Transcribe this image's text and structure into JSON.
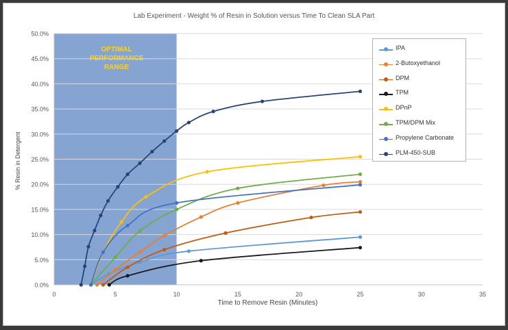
{
  "chart_data": {
    "type": "scatter",
    "title": "Lab Experiment - Weight % of Resin in Solution versus Time To Clean SLA Part",
    "xlabel": "Time to Remove Resin (Minutes)",
    "ylabel": "% Resin in Detergent",
    "xlim": [
      0,
      35
    ],
    "ylim": [
      0,
      50
    ],
    "x_ticks": [
      "0",
      "5",
      "10",
      "15",
      "20",
      "25",
      "30",
      "35"
    ],
    "y_ticks": [
      "0.0%",
      "5.0%",
      "10.0%",
      "15.0%",
      "20.0%",
      "25.0%",
      "30.0%",
      "35.0%",
      "40.0%",
      "45.0%",
      "50.0%"
    ],
    "grid": "horizontal",
    "legend_position": "top-right",
    "annotation": {
      "lines": [
        "OPTIMAL",
        "PERFORMANCE",
        "RANGE"
      ],
      "x_range": [
        0,
        10
      ]
    },
    "series": [
      {
        "name": "IPA",
        "color": "#5b9bd5",
        "x": [
          3,
          4.5,
          7,
          11,
          25
        ],
        "y": [
          0,
          2.2,
          4.5,
          6.7,
          9.5
        ]
      },
      {
        "name": "2-Butoxyethanol",
        "color": "#ed7d31",
        "x": [
          3.5,
          5,
          7,
          9,
          12,
          15,
          22,
          25
        ],
        "y": [
          0,
          3,
          6.5,
          9.8,
          13.5,
          16.3,
          19.8,
          20.5
        ]
      },
      {
        "name": "DPM",
        "color": "#c55a11",
        "x": [
          4,
          6,
          9,
          14,
          21,
          25
        ],
        "y": [
          0,
          3.5,
          7,
          10.3,
          13.4,
          14.5
        ]
      },
      {
        "name": "TPM",
        "color": "#1a1a1a",
        "x": [
          4.5,
          6,
          12,
          25
        ],
        "y": [
          0,
          1.8,
          4.8,
          7.4
        ]
      },
      {
        "name": "DPnP",
        "color": "#ffc000",
        "x": [
          3,
          4,
          5.5,
          7.5,
          12.5,
          25
        ],
        "y": [
          0,
          6.5,
          12.5,
          17.5,
          22.5,
          25.5
        ]
      },
      {
        "name": "TPM/DPM Mix",
        "color": "#70ad47",
        "x": [
          3,
          5,
          7,
          10,
          15,
          25
        ],
        "y": [
          0,
          5.5,
          10.7,
          15,
          19.2,
          22
        ]
      },
      {
        "name": "Propylene Carbonate",
        "color": "#4472c4",
        "x": [
          3,
          4,
          6,
          10,
          25
        ],
        "y": [
          0,
          6.5,
          11.8,
          16.3,
          19.9
        ]
      },
      {
        "name": "PLM-450-SUB",
        "color": "#264478",
        "x": [
          2.2,
          2.5,
          2.8,
          3.3,
          3.8,
          4.4,
          5.2,
          6,
          7,
          8,
          9,
          10,
          11,
          13,
          17,
          25
        ],
        "y": [
          0,
          3.7,
          7.6,
          10.8,
          13.8,
          16.7,
          19.5,
          22,
          24.2,
          26.5,
          28.6,
          30.6,
          32.3,
          34.5,
          36.5,
          38.5
        ]
      }
    ]
  }
}
